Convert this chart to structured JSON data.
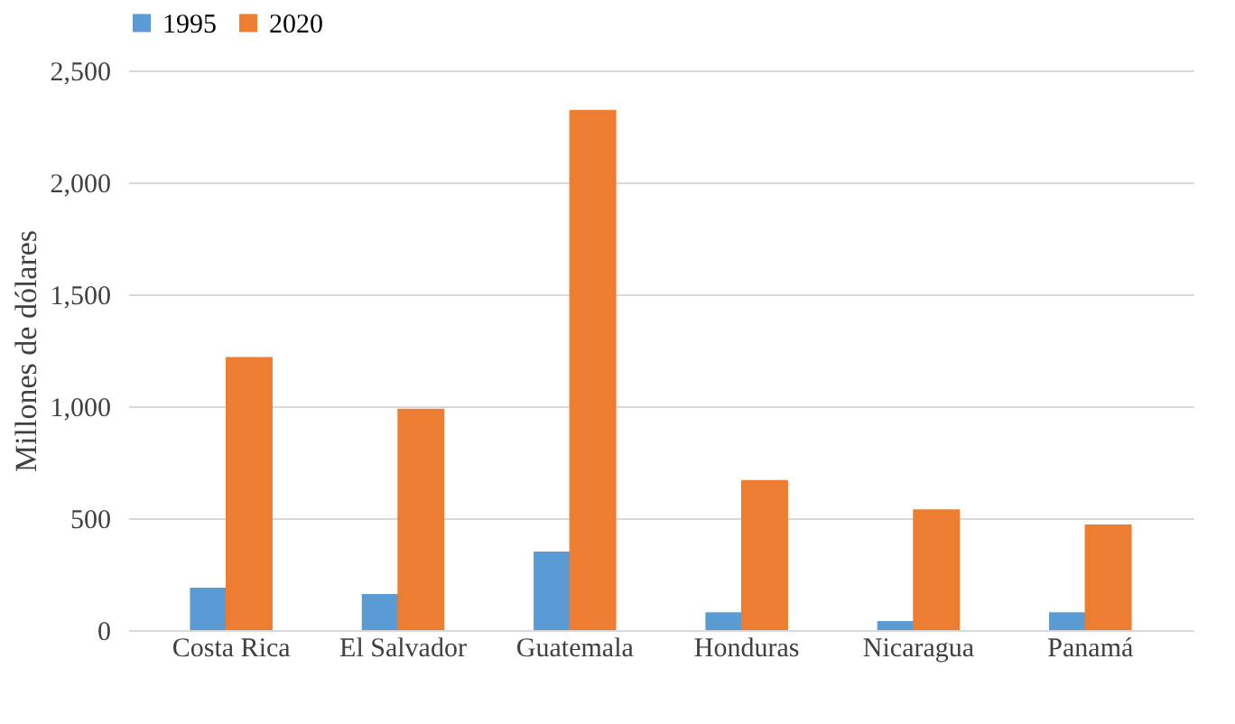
{
  "chart_data": {
    "type": "bar",
    "ylabel": "Millones de dólares",
    "categories": [
      "Costa Rica",
      "El Salvador",
      "Guatemala",
      "Honduras",
      "Nicaragua",
      "Panamá"
    ],
    "series": [
      {
        "name": "1995",
        "color": "#5b9bd5",
        "values": [
          190,
          161,
          351,
          80,
          40,
          80
        ]
      },
      {
        "name": "2020",
        "color": "#ed7d31",
        "values": [
          1220,
          989,
          2324,
          670,
          539,
          472
        ]
      }
    ],
    "ylim": [
      0,
      2500
    ],
    "yticks": [
      {
        "value": 0,
        "label": "0"
      },
      {
        "value": 500,
        "label": "500"
      },
      {
        "value": 1000,
        "label": "1,000"
      },
      {
        "value": 1500,
        "label": "1,500"
      },
      {
        "value": 2000,
        "label": "2,000"
      },
      {
        "value": 2500,
        "label": "2,500"
      }
    ],
    "grid": "y",
    "legend": "top"
  }
}
